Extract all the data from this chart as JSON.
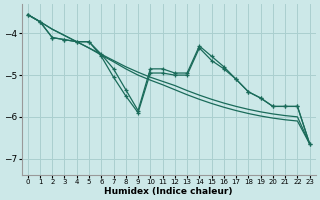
{
  "xlabel": "Humidex (Indice chaleur)",
  "xlim": [
    -0.5,
    23.5
  ],
  "ylim": [
    -7.4,
    -3.3
  ],
  "yticks": [
    -7,
    -6,
    -5,
    -4
  ],
  "xticks": [
    0,
    1,
    2,
    3,
    4,
    5,
    6,
    7,
    8,
    9,
    10,
    11,
    12,
    13,
    14,
    15,
    16,
    17,
    18,
    19,
    20,
    21,
    22,
    23
  ],
  "background_color": "#cce8e8",
  "grid_color": "#aacfcf",
  "line_color": "#1a6b5a",
  "smooth1_x": [
    0,
    1,
    2,
    3,
    4,
    5,
    6,
    7,
    8,
    9,
    10,
    11,
    12,
    13,
    14,
    15,
    16,
    17,
    18,
    19,
    20,
    21,
    22,
    23
  ],
  "smooth1_y": [
    -3.55,
    -3.72,
    -3.9,
    -4.05,
    -4.2,
    -4.35,
    -4.5,
    -4.65,
    -4.8,
    -4.93,
    -5.05,
    -5.15,
    -5.25,
    -5.37,
    -5.48,
    -5.58,
    -5.67,
    -5.75,
    -5.82,
    -5.88,
    -5.93,
    -5.97,
    -6.0,
    -6.65
  ],
  "smooth2_x": [
    0,
    1,
    2,
    3,
    4,
    5,
    6,
    7,
    8,
    9,
    10,
    11,
    12,
    13,
    14,
    15,
    16,
    17,
    18,
    19,
    20,
    21,
    22,
    23
  ],
  "smooth2_y": [
    -3.55,
    -3.72,
    -3.9,
    -4.05,
    -4.2,
    -4.35,
    -4.52,
    -4.68,
    -4.85,
    -5.0,
    -5.12,
    -5.23,
    -5.35,
    -5.47,
    -5.58,
    -5.68,
    -5.77,
    -5.85,
    -5.92,
    -5.98,
    -6.03,
    -6.07,
    -6.1,
    -6.65
  ],
  "zigzag1_x": [
    0,
    1,
    2,
    3,
    4,
    5,
    6,
    7,
    8,
    9,
    10,
    11,
    12,
    13,
    14,
    15,
    16,
    17,
    18,
    19,
    20,
    21,
    22,
    23
  ],
  "zigzag1_y": [
    -3.55,
    -3.72,
    -4.1,
    -4.15,
    -4.2,
    -4.2,
    -4.5,
    -4.85,
    -5.35,
    -5.85,
    -4.85,
    -4.85,
    -4.95,
    -4.95,
    -4.3,
    -4.55,
    -4.8,
    -5.1,
    -5.4,
    -5.55,
    -5.75,
    -5.75,
    -5.75,
    -6.65
  ],
  "zigzag2_x": [
    0,
    1,
    2,
    3,
    4,
    5,
    6,
    7,
    8,
    9,
    10,
    11,
    12,
    13,
    14,
    15,
    16,
    17,
    18,
    19,
    20,
    21,
    22,
    23
  ],
  "zigzag2_y": [
    -3.55,
    -3.72,
    -4.1,
    -4.15,
    -4.2,
    -4.2,
    -4.55,
    -5.05,
    -5.5,
    -5.9,
    -4.95,
    -4.95,
    -5.0,
    -5.0,
    -4.35,
    -4.65,
    -4.85,
    -5.1,
    -5.4,
    -5.55,
    -5.75,
    -5.75,
    -5.75,
    -6.65
  ]
}
